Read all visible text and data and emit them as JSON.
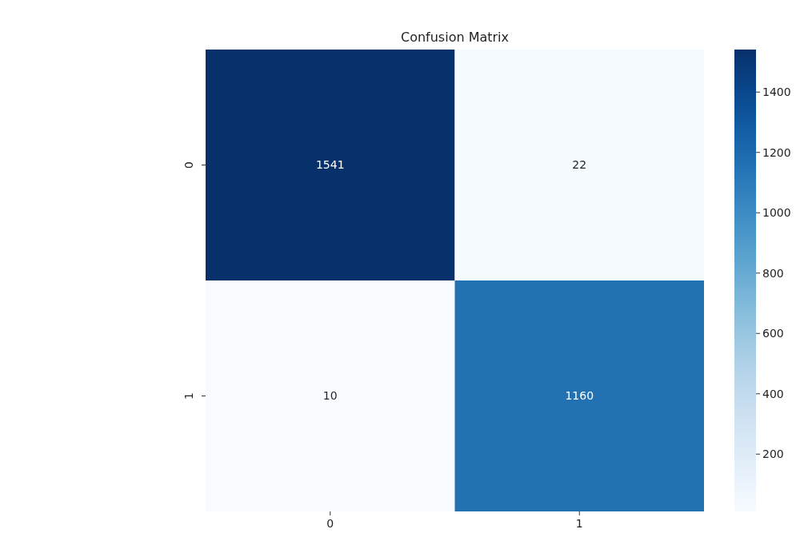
{
  "chart_data": {
    "type": "heatmap",
    "title": "Confusion Matrix",
    "categories": [
      "0",
      "1"
    ],
    "y_categories": [
      "0",
      "1"
    ],
    "cells": [
      [
        1541,
        22
      ],
      [
        10,
        1160
      ]
    ],
    "data_labels": true,
    "clim": [
      10,
      1541
    ],
    "cticks": [
      200,
      400,
      600,
      800,
      1000,
      1200,
      1400
    ]
  }
}
